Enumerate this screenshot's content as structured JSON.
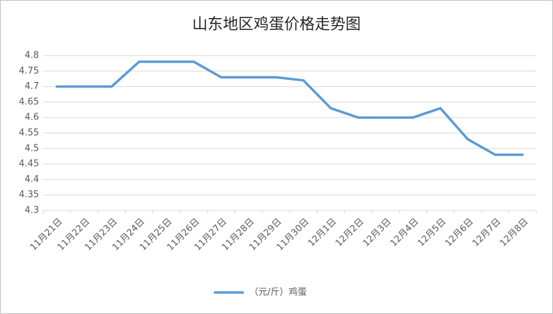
{
  "chart_data": {
    "type": "line",
    "title": "山东地区鸡蛋价格走势图",
    "categories": [
      "11月21日",
      "11月22日",
      "11月23日",
      "11月24日",
      "11月25日",
      "11月26日",
      "11月27日",
      "11月28日",
      "11月29日",
      "11月30日",
      "12月1日",
      "12月2日",
      "12月3日",
      "12月4日",
      "12月5日",
      "12月6日",
      "12月7日",
      "12月8日"
    ],
    "series": [
      {
        "name": "（元/斤）鸡蛋",
        "color": "#5b9bd5",
        "values": [
          4.7,
          4.7,
          4.7,
          4.78,
          4.78,
          4.78,
          4.73,
          4.73,
          4.73,
          4.72,
          4.63,
          4.6,
          4.6,
          4.6,
          4.63,
          4.53,
          4.48,
          4.48
        ]
      }
    ],
    "ylim": [
      4.3,
      4.8
    ],
    "yticks": [
      4.3,
      4.35,
      4.4,
      4.45,
      4.5,
      4.55,
      4.6,
      4.65,
      4.7,
      4.75,
      4.8
    ],
    "grid": true,
    "legend": "bottom"
  }
}
